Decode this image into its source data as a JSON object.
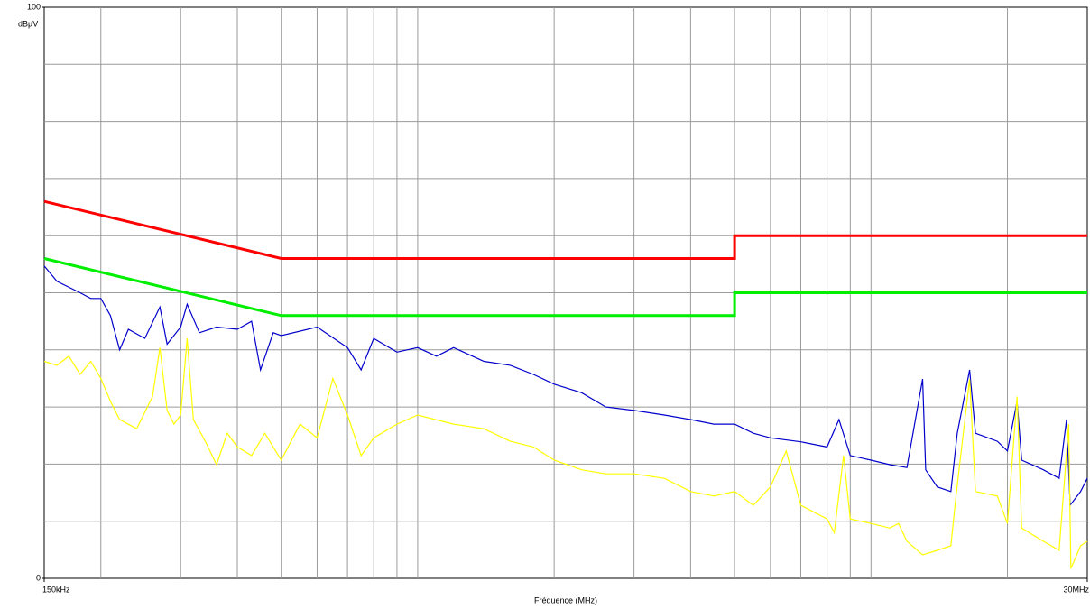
{
  "chart_data": {
    "type": "line",
    "xlabel": "Fréquence (MHz)",
    "ylabel": "dBµV",
    "xscale": "log",
    "xlim": [
      0.15,
      30
    ],
    "ylim": [
      0,
      100
    ],
    "xticks": [
      {
        "value": 0.15,
        "label": "150kHz"
      },
      {
        "value": 30,
        "label": "30MHz"
      }
    ],
    "yticks": [
      0,
      100
    ],
    "xgrid": [
      0.2,
      0.3,
      0.4,
      0.5,
      0.6,
      0.7,
      0.8,
      0.9,
      1,
      2,
      3,
      4,
      5,
      6,
      7,
      8,
      9,
      10,
      20
    ],
    "ygrid": [
      10,
      20,
      30,
      40,
      50,
      60,
      70,
      80,
      90
    ],
    "series": [
      {
        "color": "#ff0000",
        "x": [
          0.15,
          0.5,
          5,
          5,
          30
        ],
        "values": [
          66,
          56,
          56,
          60,
          60
        ]
      },
      {
        "color": "#00ee00",
        "x": [
          0.15,
          0.5,
          5,
          5,
          30
        ],
        "values": [
          56,
          46,
          46,
          50,
          50
        ]
      },
      {
        "color": "#0000cc",
        "x": [
          0.15,
          0.16,
          0.18,
          0.19,
          0.2,
          0.21,
          0.22,
          0.23,
          0.25,
          0.27,
          0.28,
          0.3,
          0.31,
          0.33,
          0.36,
          0.4,
          0.43,
          0.45,
          0.48,
          0.5,
          0.6,
          0.7,
          0.75,
          0.8,
          0.9,
          1.0,
          1.1,
          1.2,
          1.4,
          1.6,
          1.8,
          2.0,
          2.3,
          2.6,
          3,
          3.5,
          4,
          4.5,
          5,
          5.5,
          6,
          7,
          8,
          8.5,
          9,
          10,
          11,
          12,
          13,
          13.2,
          14,
          15,
          15.5,
          16.5,
          17,
          19,
          20,
          21,
          21.5,
          24,
          26,
          27,
          27.5,
          29,
          30
        ],
        "values": [
          54.7,
          52,
          50,
          49,
          49,
          46,
          40,
          43.6,
          42,
          47.5,
          41,
          44,
          48,
          43,
          44,
          43.6,
          45,
          36.5,
          43,
          42.5,
          44,
          40.4,
          36.5,
          42,
          39.6,
          40.4,
          38.9,
          40.4,
          38,
          37.3,
          35.7,
          34,
          32.5,
          30,
          29.4,
          28.6,
          27.8,
          27,
          27,
          25.4,
          24.6,
          23.9,
          23,
          27.8,
          21.5,
          20.7,
          19.9,
          19.4,
          34.9,
          19,
          16,
          15.2,
          25.4,
          36.5,
          25.4,
          24,
          22.3,
          31,
          20.7,
          19,
          17.5,
          27.8,
          12.8,
          15.2,
          17.5
        ]
      },
      {
        "color": "#ffff00",
        "x": [
          0.15,
          0.16,
          0.17,
          0.18,
          0.19,
          0.2,
          0.21,
          0.22,
          0.24,
          0.26,
          0.27,
          0.28,
          0.29,
          0.3,
          0.31,
          0.32,
          0.34,
          0.36,
          0.38,
          0.4,
          0.43,
          0.46,
          0.5,
          0.55,
          0.6,
          0.65,
          0.7,
          0.75,
          0.8,
          0.9,
          1.0,
          1.2,
          1.4,
          1.6,
          1.8,
          2.0,
          2.3,
          2.6,
          3,
          3.5,
          4,
          4.5,
          5,
          5.5,
          6,
          6.5,
          7,
          8,
          8.3,
          8.7,
          9,
          10,
          11,
          11.5,
          12,
          13,
          14,
          15,
          15.4,
          16.5,
          17,
          19,
          20,
          21,
          21.5,
          24,
          26,
          27.3,
          27.6,
          29,
          30
        ],
        "values": [
          38,
          37.3,
          38.9,
          35.7,
          38,
          35,
          31,
          27.8,
          26.2,
          31.8,
          40.4,
          29.4,
          27,
          28.6,
          42,
          27.8,
          24,
          19.9,
          25.4,
          23,
          21.5,
          25.4,
          20.7,
          27,
          24.6,
          35,
          28.6,
          21.5,
          24.6,
          27,
          28.6,
          27,
          26.2,
          24,
          23,
          20.7,
          19,
          18.3,
          18.3,
          17.5,
          15.2,
          14.4,
          15.2,
          12.8,
          16,
          22.3,
          12.8,
          10.4,
          8,
          21.5,
          10.4,
          9.6,
          8.8,
          9.6,
          6.5,
          4.1,
          4.9,
          5.7,
          14.4,
          34.9,
          15.2,
          14.4,
          9.6,
          31.8,
          8.8,
          6.5,
          4.9,
          27,
          1.7,
          5.7,
          6.5
        ]
      }
    ]
  }
}
